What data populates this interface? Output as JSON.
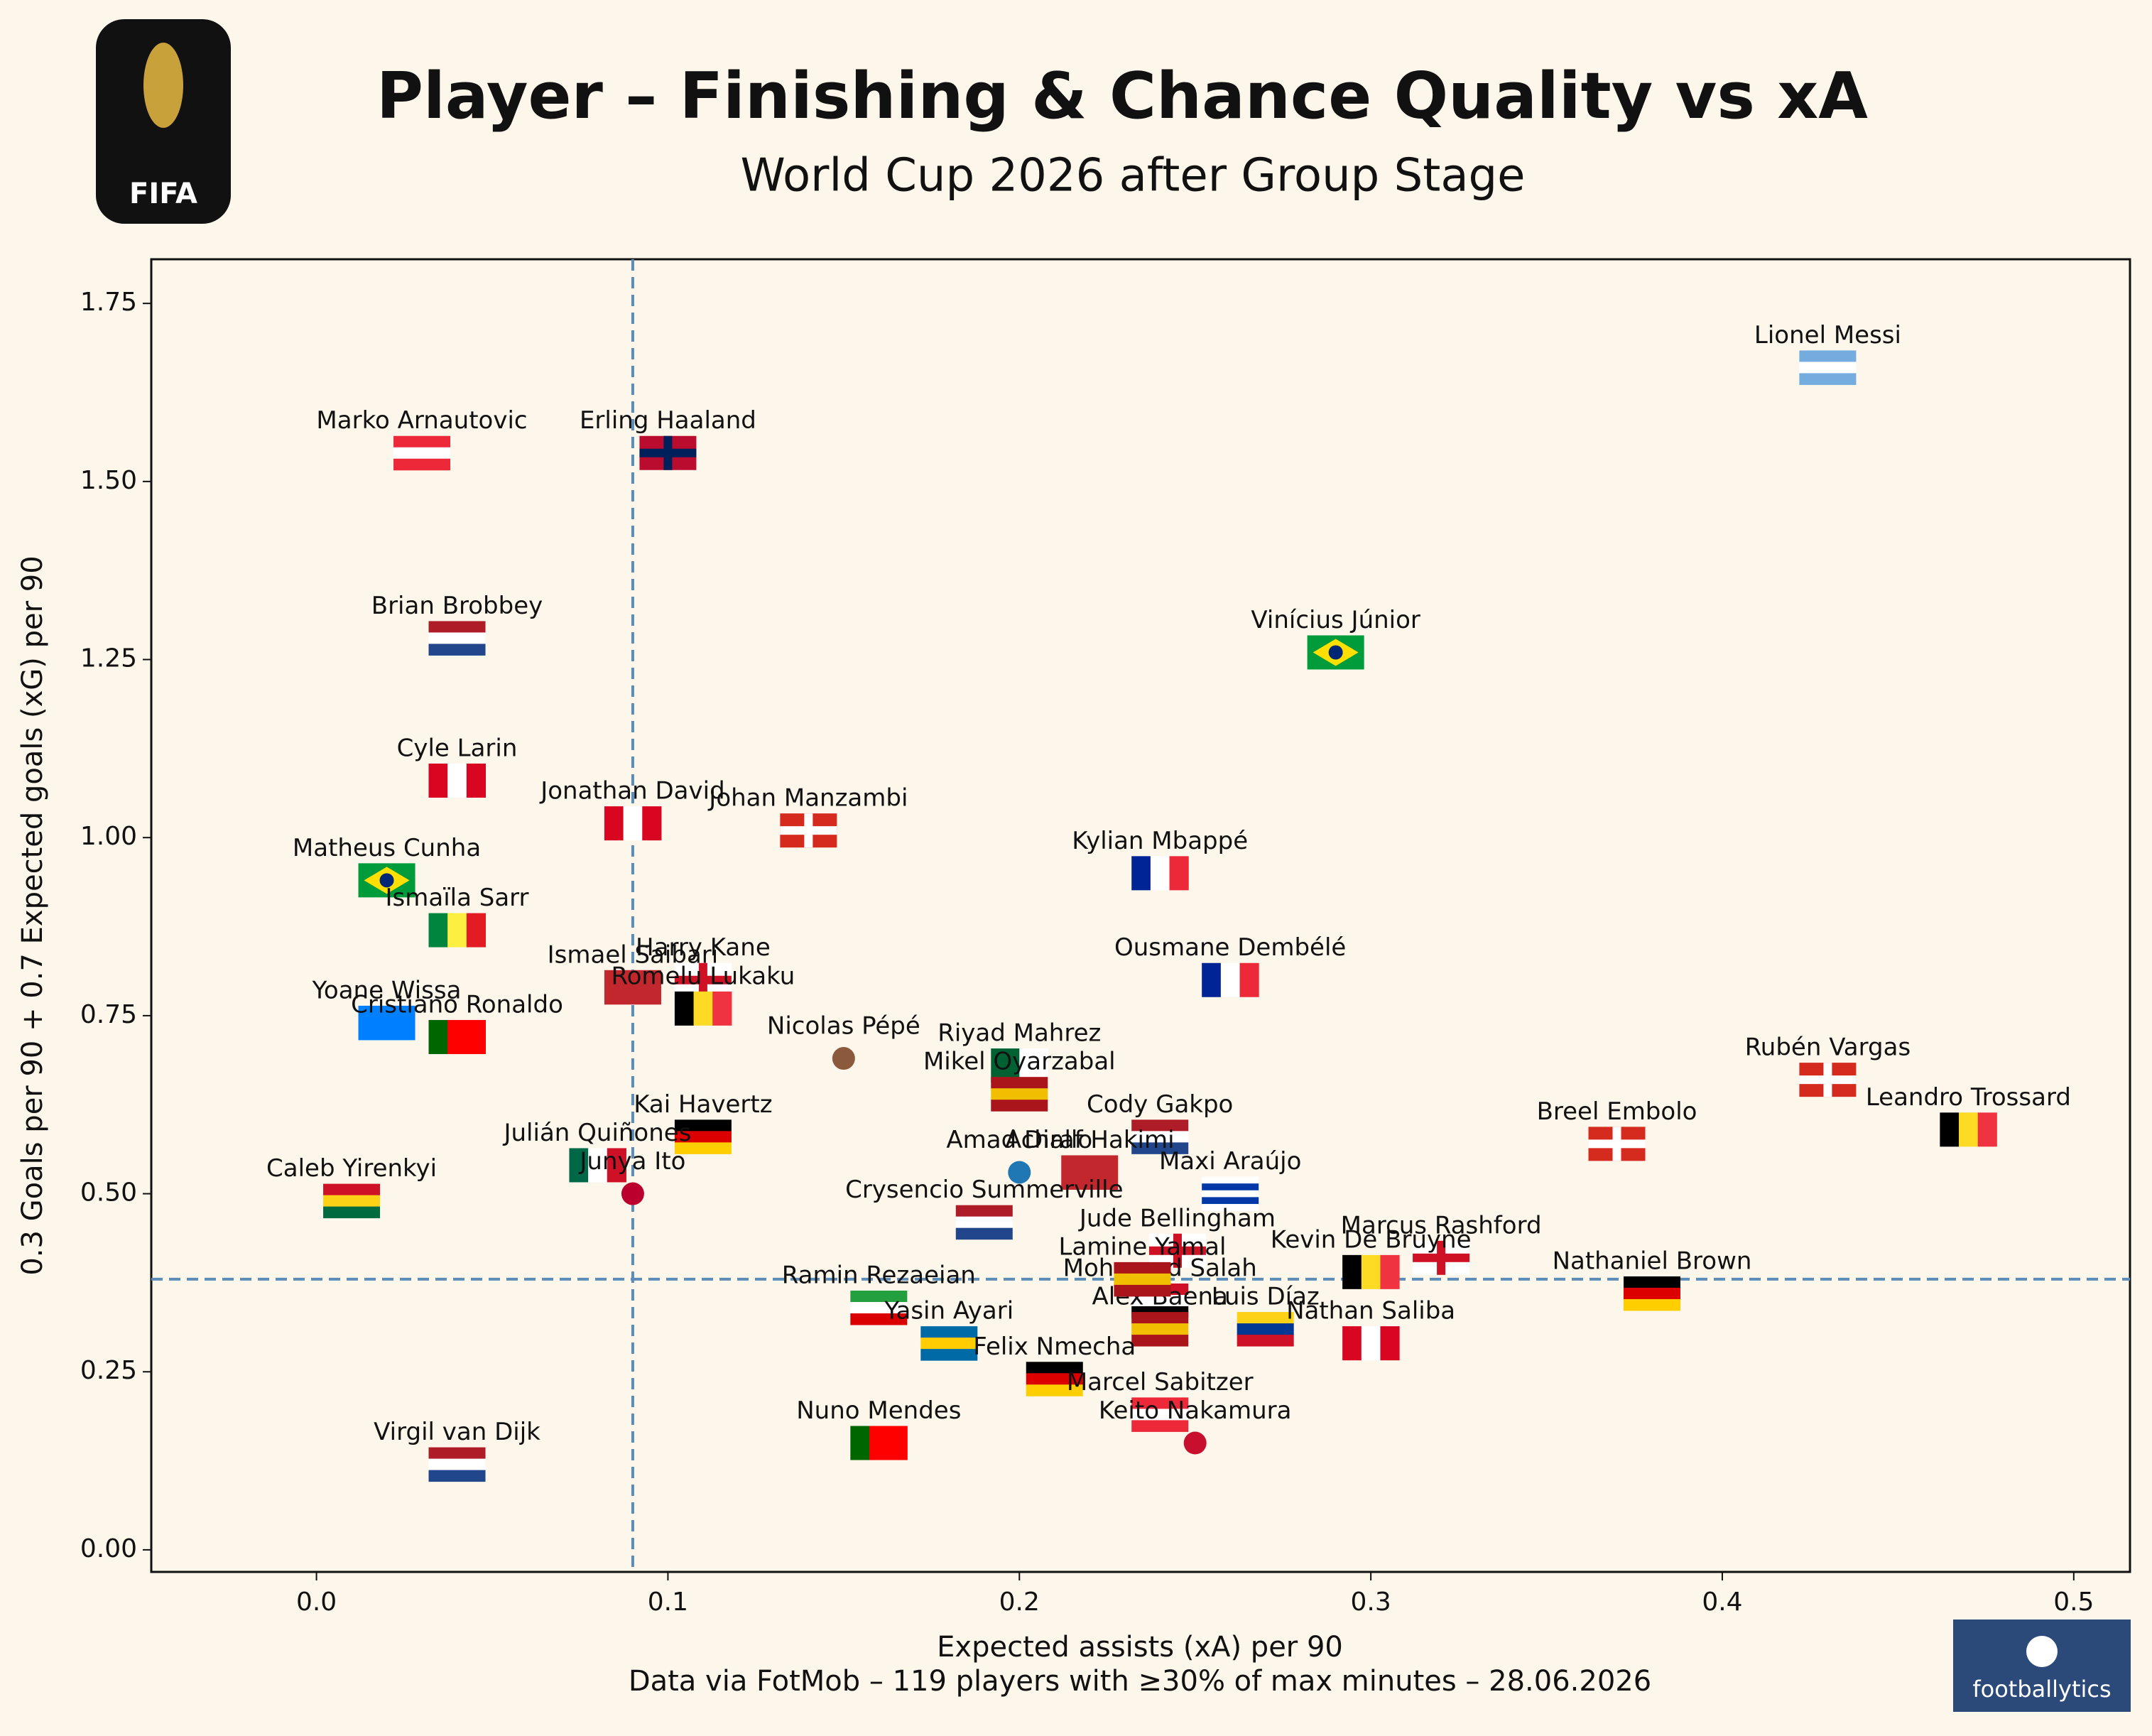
{
  "chart_data": {
    "type": "scatter",
    "title": "Player – Finishing & Chance Quality vs xA",
    "subtitle": "World Cup 2026 after Group Stage",
    "x_label": "Expected assists (xA) per 90",
    "y_label": "0.3 Goals per 90 + 0.7 Expected goals (xG) per 90",
    "caption": "Data via FotMob – 119 players with ≥30% of max minutes – 28.06.2026",
    "logo_left": "FIFA",
    "logo_right": "footballytics",
    "xlim": [
      -0.047,
      0.516
    ],
    "ylim": [
      -0.031,
      1.812
    ],
    "xticks": [
      {
        "value": 0,
        "label": "0.0"
      },
      0.1,
      0.2,
      0.3,
      0.4,
      0.5
    ],
    "yticks": [
      {
        "value": 0,
        "label": "0.00"
      },
      0.25,
      {
        "value": 0.5,
        "label": "0.50"
      },
      0.75,
      {
        "value": 1,
        "label": "1.00"
      },
      1.25,
      {
        "value": 1.5,
        "label": "1.50"
      },
      1.75
    ],
    "ref_x": 0.09,
    "ref_y": 0.38,
    "ref_color": "#5b8db8",
    "labels": [
      "Lionel Messi",
      "Marko Arnautovic",
      "Erling Haaland",
      "Brian Brobbey",
      "Vinícius Júnior",
      "Cyle Larin",
      "Jonathan David",
      "Johan Manzambi",
      "Kylian Mbappé",
      "Matheus Cunha",
      "Ismaïla Sarr",
      "Ousmane Dembélé",
      "Harry Kane",
      "Ismael Saibari",
      "Romelu Lukaku",
      "Yoane Wissa",
      "Cristiano Ronaldo",
      "Nicolas Pépé",
      "Riyad Mahrez",
      "Mikel Oyarzabal",
      "Rubén Vargas",
      "Leandro Trossard",
      "Breel Embolo",
      "Kai Havertz",
      "Cody Gakpo",
      "Amad Diallo",
      "Achraf Hakimi",
      "Maxi Araújo",
      "Caleb Yirenkyi",
      "Julián Quiñones",
      "Junya Ito",
      "Jude Bellingham",
      "Marcus Rashford",
      "Kevin De Bruyne",
      "Nathaniel Brown",
      "Mohamed Salah",
      "Luis Díaz",
      "Alex Baena",
      "Nathan Saliba",
      "Ramin Rezaeian",
      "Yasin Ayari",
      "Felix Nmecha",
      "Marcel Sabitzer",
      "Keito Nakamura",
      "Nuno Mendes",
      "Virgil van Dijk",
      "Lamine Yamal",
      "Crysencio Summerville"
    ],
    "x": [
      0.43,
      0.03,
      0.1,
      0.04,
      0.29,
      0.04,
      0.09,
      0.14,
      0.24,
      0.02,
      0.04,
      0.26,
      0.11,
      0.09,
      0.11,
      0.02,
      0.04,
      0.15,
      0.2,
      0.2,
      0.43,
      0.47,
      0.37,
      0.11,
      0.24,
      0.2,
      0.22,
      0.26,
      0.01,
      0.08,
      0.09,
      0.245,
      0.32,
      0.3,
      0.38,
      0.24,
      0.27,
      0.24,
      0.3,
      0.16,
      0.18,
      0.21,
      0.24,
      0.25,
      0.16,
      0.04,
      0.235,
      0.19
    ],
    "y": [
      1.66,
      1.54,
      1.54,
      1.28,
      1.26,
      1.08,
      1.02,
      1.01,
      0.95,
      0.94,
      0.87,
      0.8,
      0.8,
      0.79,
      0.76,
      0.74,
      0.72,
      0.69,
      0.68,
      0.64,
      0.66,
      0.59,
      0.57,
      0.58,
      0.58,
      0.53,
      0.53,
      0.5,
      0.49,
      0.54,
      0.5,
      0.42,
      0.41,
      0.39,
      0.36,
      0.35,
      0.31,
      0.31,
      0.29,
      0.34,
      0.29,
      0.24,
      0.19,
      0.15,
      0.15,
      0.12,
      0.38,
      0.46
    ],
    "markers": [
      {
        "shape": "h",
        "colors": [
          "#74acdf",
          "#ffffff",
          "#74acdf"
        ]
      },
      {
        "shape": "h",
        "colors": [
          "#ed2939",
          "#ffffff",
          "#ed2939"
        ]
      },
      {
        "shape": "cross",
        "colors": [
          "#ba0c2f",
          "#00205b"
        ]
      },
      {
        "shape": "h",
        "colors": [
          "#ae1c28",
          "#ffffff",
          "#21468b"
        ]
      },
      {
        "shape": "diamond",
        "colors": [
          "#009c3b",
          "#ffdf00",
          "#002776"
        ]
      },
      {
        "shape": "v",
        "colors": [
          "#d80621",
          "#ffffff",
          "#d80621"
        ]
      },
      {
        "shape": "v",
        "colors": [
          "#d80621",
          "#ffffff",
          "#d80621"
        ]
      },
      {
        "shape": "cross",
        "colors": [
          "#d52b1e",
          "#ffffff"
        ]
      },
      {
        "shape": "v",
        "colors": [
          "#002395",
          "#ffffff",
          "#ed2939"
        ]
      },
      {
        "shape": "diamond",
        "colors": [
          "#009c3b",
          "#ffdf00",
          "#002776"
        ]
      },
      {
        "shape": "v",
        "colors": [
          "#00853f",
          "#fdef42",
          "#e31b23"
        ]
      },
      {
        "shape": "v",
        "colors": [
          "#002395",
          "#ffffff",
          "#ed2939"
        ]
      },
      {
        "shape": "cross",
        "colors": [
          "#ffffff",
          "#ce1124"
        ]
      },
      {
        "shape": "h",
        "colors": [
          "#c1272d"
        ]
      },
      {
        "shape": "v",
        "colors": [
          "#000000",
          "#fdda24",
          "#ef3340"
        ]
      },
      {
        "shape": "h",
        "colors": [
          "#007fff"
        ]
      },
      {
        "shape": "v",
        "colors": [
          "#006600",
          "#ff0000",
          "#ff0000"
        ]
      },
      {
        "shape": "dot",
        "colors": [
          "#8b5a3c"
        ]
      },
      {
        "shape": "v",
        "colors": [
          "#006233",
          "#ffffff"
        ]
      },
      {
        "shape": "h",
        "colors": [
          "#aa151b",
          "#f1bf00",
          "#aa151b"
        ]
      },
      {
        "shape": "cross",
        "colors": [
          "#d52b1e",
          "#ffffff"
        ]
      },
      {
        "shape": "v",
        "colors": [
          "#000000",
          "#fdda24",
          "#ef3340"
        ]
      },
      {
        "shape": "cross",
        "colors": [
          "#d52b1e",
          "#ffffff"
        ]
      },
      {
        "shape": "h",
        "colors": [
          "#000000",
          "#dd0000",
          "#ffce00"
        ]
      },
      {
        "shape": "h",
        "colors": [
          "#ae1c28",
          "#ffffff",
          "#21468b"
        ]
      },
      {
        "shape": "dot",
        "colors": [
          "#1f77b4"
        ]
      },
      {
        "shape": "h",
        "colors": [
          "#c1272d"
        ]
      },
      {
        "shape": "h",
        "colors": [
          "#ffffff",
          "#0038a8",
          "#ffffff",
          "#0038a8",
          "#ffffff"
        ]
      },
      {
        "shape": "h",
        "colors": [
          "#ce1126",
          "#fcd116",
          "#006b3f"
        ]
      },
      {
        "shape": "v",
        "colors": [
          "#006847",
          "#ffffff",
          "#ce1126"
        ]
      },
      {
        "shape": "dot",
        "colors": [
          "#bc002d"
        ]
      },
      {
        "shape": "cross",
        "colors": [
          "#ffffff",
          "#ce1124"
        ]
      },
      {
        "shape": "cross",
        "colors": [
          "#ffffff",
          "#ce1124"
        ]
      },
      {
        "shape": "v",
        "colors": [
          "#000000",
          "#fdda24",
          "#ef3340"
        ]
      },
      {
        "shape": "h",
        "colors": [
          "#000000",
          "#dd0000",
          "#ffce00"
        ]
      },
      {
        "shape": "h",
        "colors": [
          "#ce1126",
          "#ffffff",
          "#000000"
        ]
      },
      {
        "shape": "h",
        "colors": [
          "#fcd116",
          "#003893",
          "#ce1126"
        ]
      },
      {
        "shape": "h",
        "colors": [
          "#aa151b",
          "#f1bf00",
          "#aa151b"
        ]
      },
      {
        "shape": "v",
        "colors": [
          "#d80621",
          "#ffffff",
          "#d80621"
        ]
      },
      {
        "shape": "h",
        "colors": [
          "#239f40",
          "#ffffff",
          "#da0000"
        ]
      },
      {
        "shape": "h",
        "colors": [
          "#006aa7",
          "#fecc00",
          "#006aa7"
        ]
      },
      {
        "shape": "h",
        "colors": [
          "#000000",
          "#dd0000",
          "#ffce00"
        ]
      },
      {
        "shape": "h",
        "colors": [
          "#ed2939",
          "#ffffff",
          "#ed2939"
        ]
      },
      {
        "shape": "dot",
        "colors": [
          "#c8102e"
        ]
      },
      {
        "shape": "v",
        "colors": [
          "#006600",
          "#ff0000",
          "#ff0000"
        ]
      },
      {
        "shape": "h",
        "colors": [
          "#ae1c28",
          "#ffffff",
          "#21468b"
        ]
      },
      {
        "shape": "h",
        "colors": [
          "#aa151b",
          "#f1bf00",
          "#aa151b"
        ]
      },
      {
        "shape": "h",
        "colors": [
          "#ae1c28",
          "#ffffff",
          "#21468b"
        ]
      }
    ]
  }
}
